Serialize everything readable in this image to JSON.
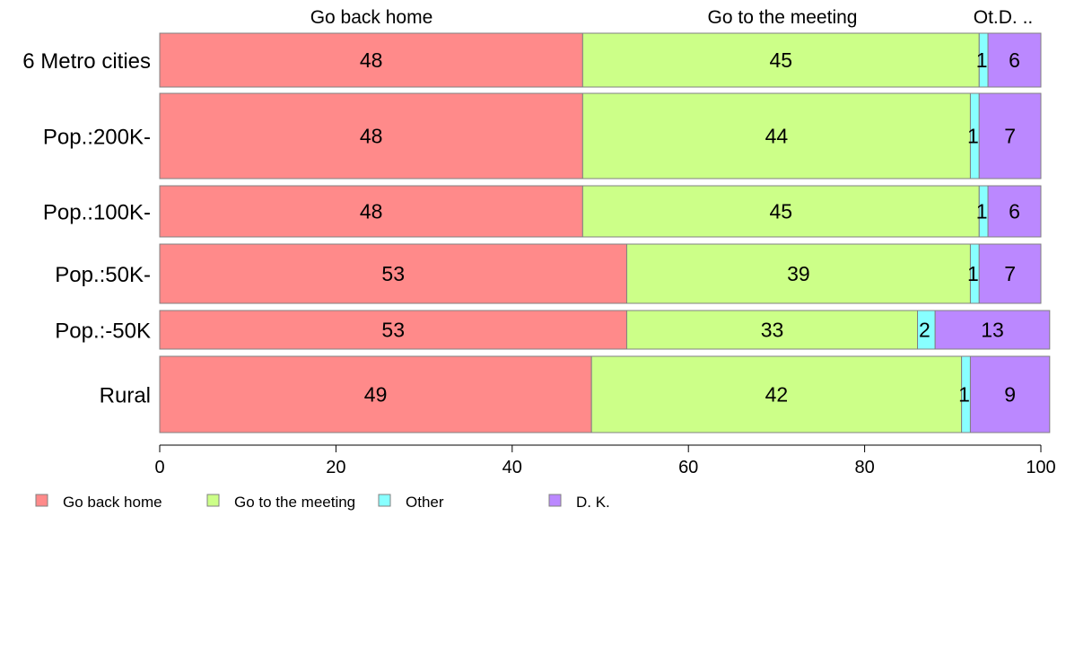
{
  "chart_data": {
    "type": "bar",
    "orientation": "horizontal",
    "stacked": true,
    "percent": true,
    "title": "",
    "xlabel": "",
    "ylabel": "",
    "xlim": [
      0,
      100
    ],
    "x_ticks": [
      0,
      20,
      40,
      60,
      80,
      100
    ],
    "grid": false,
    "legend": "bottom-left",
    "top_labels": [
      "Go back home",
      "Go to the meeting",
      "Ot.D. .."
    ],
    "categories": [
      "6 Metro cities",
      "Pop.:200K-",
      "Pop.:100K-",
      "Pop.:50K-",
      "Pop.:-50K",
      "Rural"
    ],
    "series": [
      {
        "name": "Go back home",
        "color": "#ff8a8a",
        "values": [
          48,
          48,
          48,
          53,
          53,
          49
        ],
        "labels": [
          "48",
          "48",
          "48",
          "53",
          "53",
          "49"
        ]
      },
      {
        "name": "Go to the meeting",
        "color": "#ccff88",
        "values": [
          45,
          44,
          45,
          39,
          33,
          42
        ],
        "labels": [
          "45",
          "44",
          "45",
          "39",
          "33",
          "42"
        ]
      },
      {
        "name": "Other",
        "color": "#88ffff",
        "values": [
          1,
          1,
          1,
          1,
          2,
          1
        ],
        "labels": [
          "1",
          "1",
          "1",
          "1",
          "2",
          "1"
        ]
      },
      {
        "name": "D. K.",
        "color": "#bb88ff",
        "values": [
          6,
          7,
          6,
          7,
          13,
          9
        ],
        "labels": [
          "6",
          "7",
          "6",
          "7",
          "13",
          "9"
        ]
      }
    ]
  }
}
